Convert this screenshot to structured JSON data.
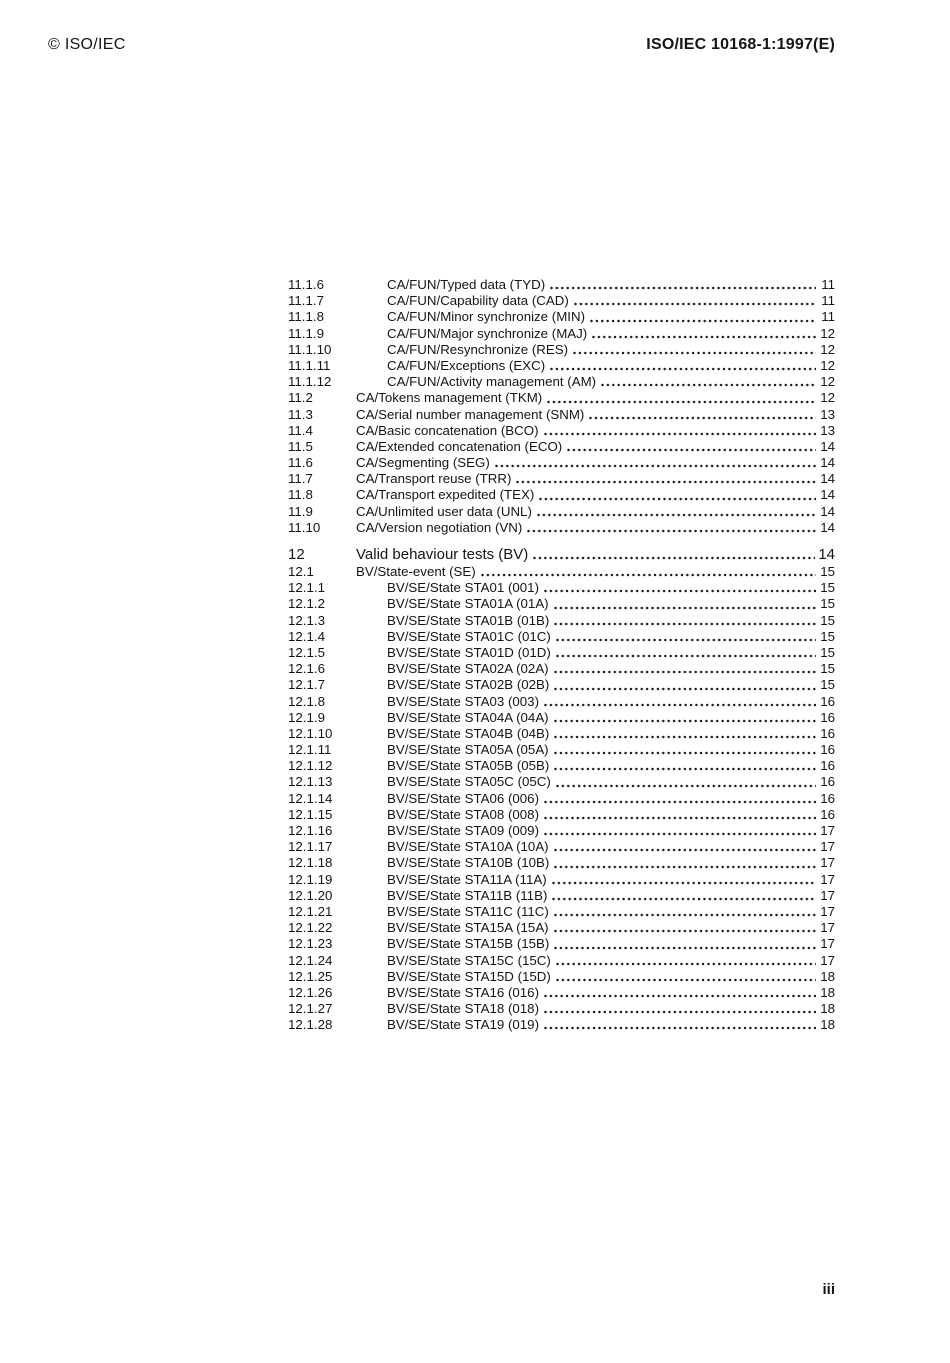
{
  "colors": {
    "ink": "#151515",
    "paper": "#ffffff"
  },
  "header": {
    "left": "© ISO/IEC",
    "right": "ISO/IEC 10168-1:1997(E)"
  },
  "footer": {
    "page_number": "iii"
  },
  "toc": {
    "entries": [
      {
        "num": "11.1.6",
        "title": "CA/FUN/Typed data (TYD)",
        "page": "11",
        "level": 3
      },
      {
        "num": "11.1.7",
        "title": "CA/FUN/Capability data (CAD)",
        "page": "11",
        "level": 3
      },
      {
        "num": "11.1.8",
        "title": "CA/FUN/Minor synchronize (MIN)",
        "page": "11",
        "level": 3
      },
      {
        "num": "11.1.9",
        "title": "CA/FUN/Major synchronize (MAJ)",
        "page": "12",
        "level": 3
      },
      {
        "num": "11.1.10",
        "title": "CA/FUN/Resynchronize (RES)",
        "page": "12",
        "level": 3
      },
      {
        "num": "11.1.11",
        "title": "CA/FUN/Exceptions (EXC)",
        "page": "12",
        "level": 3
      },
      {
        "num": "11.1.12",
        "title": "CA/FUN/Activity management (AM)",
        "page": "12",
        "level": 3
      },
      {
        "num": "11.2",
        "title": "CA/Tokens management (TKM)",
        "page": "12",
        "level": 2
      },
      {
        "num": "11.3",
        "title": "CA/Serial number management (SNM)",
        "page": "13",
        "level": 2
      },
      {
        "num": "11.4",
        "title": "CA/Basic concatenation (BCO)",
        "page": "13",
        "level": 2
      },
      {
        "num": "11.5",
        "title": "CA/Extended concatenation (ECO)",
        "page": "14",
        "level": 2
      },
      {
        "num": "11.6",
        "title": "CA/Segmenting (SEG)",
        "page": "14",
        "level": 2
      },
      {
        "num": "11.7",
        "title": "CA/Transport reuse (TRR)",
        "page": "14",
        "level": 2
      },
      {
        "num": "11.8",
        "title": "CA/Transport expedited (TEX)",
        "page": "14",
        "level": 2
      },
      {
        "num": "11.9",
        "title": "CA/Unlimited user data (UNL)",
        "page": "14",
        "level": 2
      },
      {
        "num": "11.10",
        "title": "CA/Version negotiation (VN)",
        "page": "14",
        "level": 2
      },
      {
        "num": "12",
        "title": "Valid behaviour tests (BV)",
        "page": "14",
        "level": 1
      },
      {
        "num": "12.1",
        "title": "BV/State-event (SE)",
        "page": "15",
        "level": 2
      },
      {
        "num": "12.1.1",
        "title": "BV/SE/State STA01 (001)",
        "page": "15",
        "level": 3
      },
      {
        "num": "12.1.2",
        "title": "BV/SE/State STA01A (01A)",
        "page": "15",
        "level": 3
      },
      {
        "num": "12.1.3",
        "title": "BV/SE/State STA01B (01B)",
        "page": "15",
        "level": 3
      },
      {
        "num": "12.1.4",
        "title": "BV/SE/State STA01C (01C)",
        "page": "15",
        "level": 3
      },
      {
        "num": "12.1.5",
        "title": "BV/SE/State STA01D (01D)",
        "page": "15",
        "level": 3
      },
      {
        "num": "12.1.6",
        "title": "BV/SE/State STA02A (02A)",
        "page": "15",
        "level": 3
      },
      {
        "num": "12.1.7",
        "title": "BV/SE/State STA02B (02B)",
        "page": "15",
        "level": 3
      },
      {
        "num": "12.1.8",
        "title": "BV/SE/State STA03 (003)",
        "page": "16",
        "level": 3
      },
      {
        "num": "12.1.9",
        "title": "BV/SE/State STA04A (04A)",
        "page": "16",
        "level": 3
      },
      {
        "num": "12.1.10",
        "title": "BV/SE/State STA04B (04B)",
        "page": "16",
        "level": 3
      },
      {
        "num": "12.1.11",
        "title": "BV/SE/State STA05A (05A)",
        "page": "16",
        "level": 3
      },
      {
        "num": "12.1.12",
        "title": "BV/SE/State STA05B (05B)",
        "page": "16",
        "level": 3
      },
      {
        "num": "12.1.13",
        "title": "BV/SE/State STA05C (05C)",
        "page": "16",
        "level": 3
      },
      {
        "num": "12.1.14",
        "title": "BV/SE/State STA06 (006)",
        "page": "16",
        "level": 3
      },
      {
        "num": "12.1.15",
        "title": "BV/SE/State STA08 (008)",
        "page": "16",
        "level": 3
      },
      {
        "num": "12.1.16",
        "title": "BV/SE/State STA09 (009)",
        "page": "17",
        "level": 3
      },
      {
        "num": "12.1.17",
        "title": "BV/SE/State STA10A (10A)",
        "page": "17",
        "level": 3
      },
      {
        "num": "12.1.18",
        "title": "BV/SE/State STA10B (10B)",
        "page": "17",
        "level": 3
      },
      {
        "num": "12.1.19",
        "title": "BV/SE/State STA11A (11A)",
        "page": "17",
        "level": 3
      },
      {
        "num": "12.1.20",
        "title": "BV/SE/State STA11B (11B)",
        "page": "17",
        "level": 3
      },
      {
        "num": "12.1.21",
        "title": "BV/SE/State STA11C (11C)",
        "page": "17",
        "level": 3
      },
      {
        "num": "12.1.22",
        "title": "BV/SE/State STA15A (15A)",
        "page": "17",
        "level": 3
      },
      {
        "num": "12.1.23",
        "title": "BV/SE/State STA15B (15B)",
        "page": "17",
        "level": 3
      },
      {
        "num": "12.1.24",
        "title": "BV/SE/State STA15C (15C)",
        "page": "17",
        "level": 3
      },
      {
        "num": "12.1.25",
        "title": "BV/SE/State STA15D (15D)",
        "page": "18",
        "level": 3
      },
      {
        "num": "12.1.26",
        "title": "BV/SE/State STA16 (016)",
        "page": "18",
        "level": 3
      },
      {
        "num": "12.1.27",
        "title": "BV/SE/State STA18 (018)",
        "page": "18",
        "level": 3
      },
      {
        "num": "12.1.28",
        "title": "BV/SE/State STA19 (019)",
        "page": "18",
        "level": 3
      }
    ]
  }
}
